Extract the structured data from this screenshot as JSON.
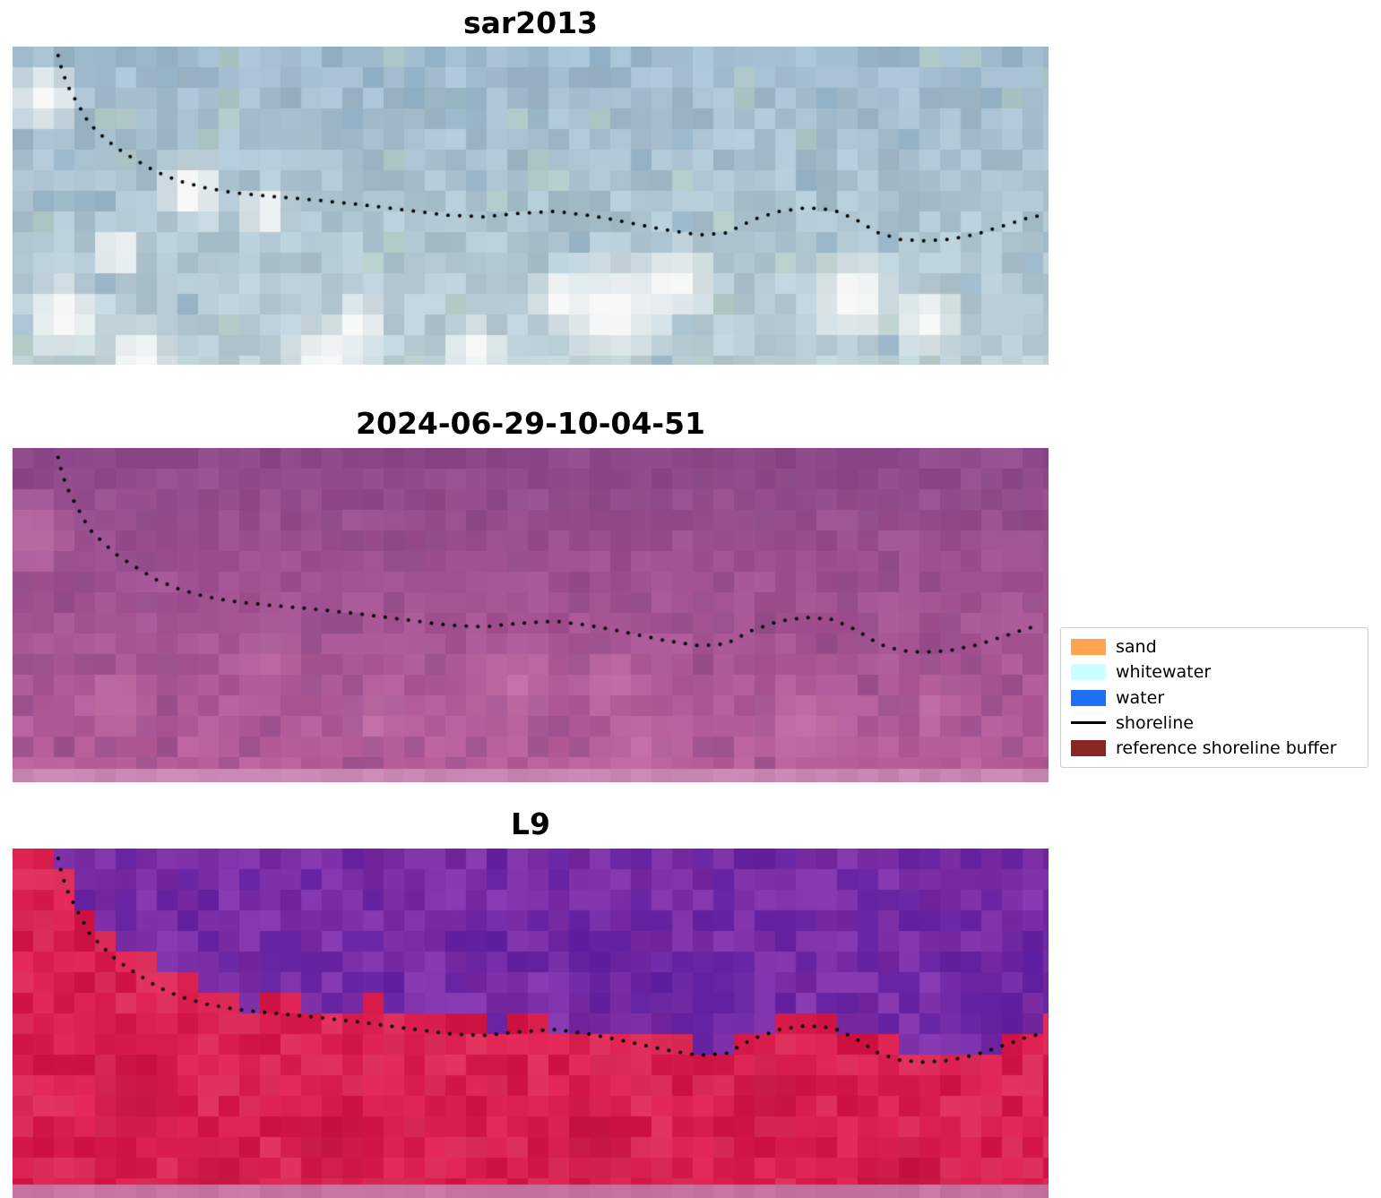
{
  "chart_data": {
    "type": "image",
    "figure_background": "#ffffff",
    "panels": [
      {
        "title": "sar2013",
        "kind": "sar",
        "seed": 11,
        "palette": {
          "base_top": "#9fbacc",
          "base_bottom": "#bccfd6",
          "white": "#f7f9f8",
          "green": "#b7cfc0",
          "dark": "#8aacc4"
        },
        "highlights": [
          [
            0.57,
            0.8,
            0.06
          ],
          [
            0.63,
            0.72,
            0.045
          ],
          [
            0.52,
            0.76,
            0.032
          ],
          [
            0.8,
            0.76,
            0.05
          ],
          [
            0.87,
            0.83,
            0.038
          ],
          [
            0.17,
            0.44,
            0.04
          ],
          [
            0.24,
            0.5,
            0.03
          ],
          [
            0.05,
            0.82,
            0.045
          ],
          [
            0.1,
            0.62,
            0.03
          ],
          [
            0.33,
            0.84,
            0.03
          ],
          [
            0.44,
            0.93,
            0.035
          ],
          [
            0.03,
            0.15,
            0.04
          ],
          [
            0.3,
            0.96,
            0.05
          ],
          [
            0.12,
            0.95,
            0.04
          ]
        ]
      },
      {
        "title": "2024-06-29-10-04-51",
        "kind": "gradient",
        "seed": 22,
        "palette": {
          "top": "#8e4a8c",
          "bottom": "#bd609c",
          "light": "#ca77ac",
          "dark": "#874784",
          "strip": "#c887b3"
        },
        "highlights": [
          [
            0.48,
            0.68,
            0.05
          ],
          [
            0.57,
            0.66,
            0.04
          ],
          [
            0.35,
            0.78,
            0.04
          ],
          [
            0.25,
            0.6,
            0.03
          ],
          [
            0.75,
            0.8,
            0.05
          ],
          [
            0.88,
            0.72,
            0.032
          ],
          [
            0.1,
            0.72,
            0.04
          ],
          [
            0.6,
            0.88,
            0.05
          ],
          [
            0.02,
            0.25,
            0.05
          ]
        ]
      },
      {
        "title": "L9",
        "kind": "classified",
        "seed": 33,
        "palette": {
          "purple_main": "#7c2fa6",
          "purple_dark": "#5a1ca0",
          "red_main": "#d91e4e",
          "red_dark": "#be1040",
          "red_light": "#e23f66",
          "strip": "#c9739f"
        },
        "dark_purple": [
          [
            0.55,
            0.3,
            0.05
          ],
          [
            0.62,
            0.38,
            0.04
          ],
          [
            0.92,
            0.45,
            0.05
          ],
          [
            0.97,
            0.3,
            0.04
          ],
          [
            0.45,
            0.27,
            0.035
          ],
          [
            0.68,
            0.42,
            0.045
          ]
        ],
        "dark_red": [
          [
            0.12,
            0.72,
            0.05
          ],
          [
            0.3,
            0.84,
            0.045
          ],
          [
            0.55,
            0.84,
            0.05
          ],
          [
            0.72,
            0.7,
            0.04
          ],
          [
            0.85,
            0.95,
            0.05
          ],
          [
            0.2,
            0.95,
            0.05
          ]
        ]
      }
    ],
    "shoreline": {
      "color": "#000000",
      "dot_radius": 2,
      "dot_spacing": 13,
      "points_frac": [
        [
          0.044,
          0.028
        ],
        [
          0.048,
          0.079
        ],
        [
          0.055,
          0.135
        ],
        [
          0.064,
          0.186
        ],
        [
          0.074,
          0.242
        ],
        [
          0.087,
          0.282
        ],
        [
          0.1,
          0.318
        ],
        [
          0.118,
          0.355
        ],
        [
          0.139,
          0.394
        ],
        [
          0.161,
          0.423
        ],
        [
          0.187,
          0.445
        ],
        [
          0.213,
          0.459
        ],
        [
          0.247,
          0.47
        ],
        [
          0.291,
          0.482
        ],
        [
          0.334,
          0.496
        ],
        [
          0.377,
          0.513
        ],
        [
          0.42,
          0.53
        ],
        [
          0.455,
          0.535
        ],
        [
          0.49,
          0.524
        ],
        [
          0.524,
          0.518
        ],
        [
          0.559,
          0.532
        ],
        [
          0.593,
          0.552
        ],
        [
          0.628,
          0.575
        ],
        [
          0.663,
          0.592
        ],
        [
          0.689,
          0.586
        ],
        [
          0.715,
          0.544
        ],
        [
          0.74,
          0.518
        ],
        [
          0.766,
          0.507
        ],
        [
          0.792,
          0.513
        ],
        [
          0.814,
          0.544
        ],
        [
          0.836,
          0.586
        ],
        [
          0.857,
          0.606
        ],
        [
          0.879,
          0.611
        ],
        [
          0.905,
          0.606
        ],
        [
          0.931,
          0.589
        ],
        [
          0.957,
          0.563
        ],
        [
          0.978,
          0.541
        ],
        [
          0.993,
          0.53
        ]
      ]
    },
    "legend": {
      "items": [
        {
          "label": "sand",
          "swatch": "patch",
          "color": "#ffa54f"
        },
        {
          "label": "whitewater",
          "swatch": "patch",
          "color": "#ccffff"
        },
        {
          "label": "water",
          "swatch": "patch",
          "color": "#1f6ff2"
        },
        {
          "label": "shoreline",
          "swatch": "line",
          "color": "#000000"
        },
        {
          "label": "reference shoreline buffer",
          "swatch": "patch",
          "color": "#8b2525"
        }
      ]
    }
  }
}
